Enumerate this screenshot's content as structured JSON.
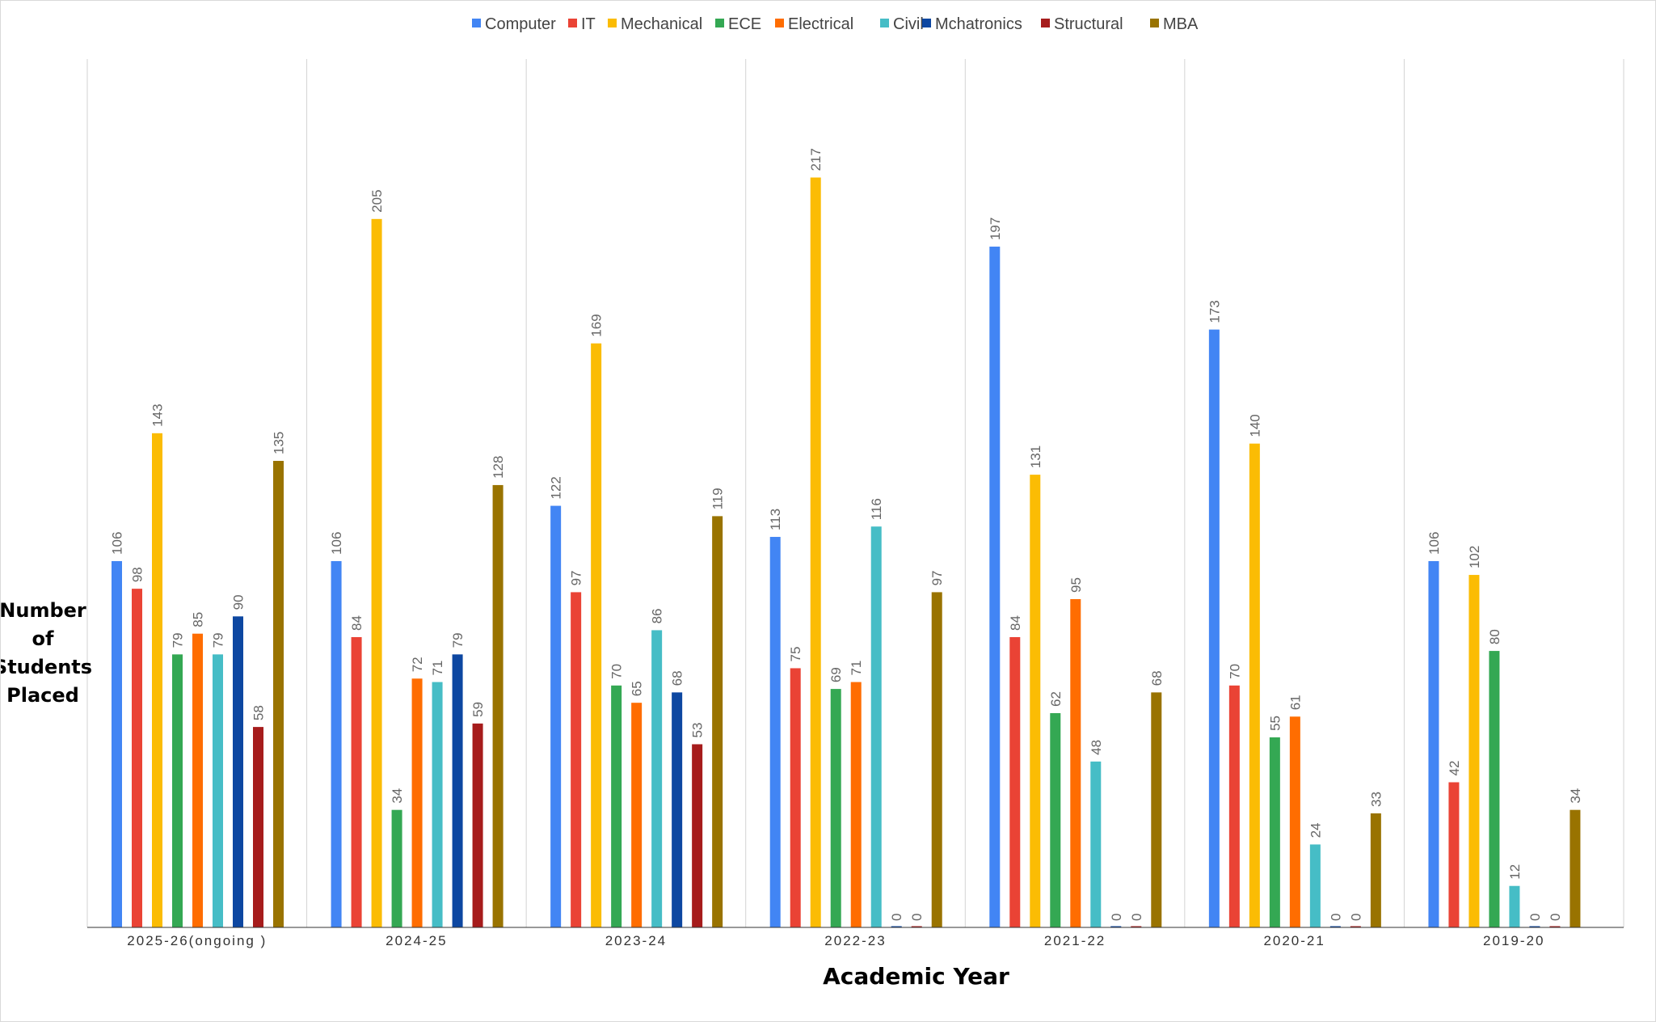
{
  "chart_data": {
    "type": "bar",
    "xlabel": "Academic Year",
    "ylabel": "Number of Students Placed",
    "ylabel_lines": [
      "Number",
      "of",
      "Students",
      "Placed"
    ],
    "ylim": [
      0,
      250
    ],
    "grid": false,
    "legend_position": "top",
    "categories": [
      "2025-26(ongoing )",
      "2024-25",
      "2023-24",
      "2022-23",
      "2021-22",
      "2020-21",
      "2019-20"
    ],
    "series": [
      {
        "name": "Computer",
        "color": "#4285f4",
        "values": [
          106,
          106,
          122,
          113,
          197,
          173,
          106
        ]
      },
      {
        "name": "IT",
        "color": "#ea4335",
        "values": [
          98,
          84,
          97,
          75,
          84,
          70,
          42
        ]
      },
      {
        "name": "Mechanical",
        "color": "#fbbc04",
        "values": [
          143,
          205,
          169,
          217,
          131,
          140,
          102
        ]
      },
      {
        "name": "ECE",
        "color": "#34a853",
        "values": [
          79,
          34,
          70,
          69,
          62,
          55,
          80
        ]
      },
      {
        "name": "Electrical",
        "color": "#ff6d01",
        "values": [
          85,
          72,
          65,
          71,
          95,
          61,
          0
        ]
      },
      {
        "name": "Civil",
        "color": "#46bdc6",
        "values": [
          79,
          71,
          86,
          116,
          48,
          24,
          12
        ]
      },
      {
        "name": "Mchatronics",
        "color": "#0d47a1",
        "values": [
          90,
          79,
          68,
          0,
          0,
          0,
          0
        ]
      },
      {
        "name": "Structural",
        "color": "#a61c1c",
        "values": [
          58,
          59,
          53,
          0,
          0,
          0,
          0
        ]
      },
      {
        "name": "MBA",
        "color": "#997300",
        "values": [
          135,
          128,
          119,
          97,
          68,
          33,
          34
        ]
      }
    ],
    "present": [
      [
        true,
        true,
        true,
        true,
        true,
        true,
        true,
        true,
        true
      ],
      [
        true,
        true,
        true,
        true,
        true,
        true,
        true,
        true,
        true
      ],
      [
        true,
        true,
        true,
        true,
        true,
        true,
        true,
        true,
        true
      ],
      [
        true,
        true,
        true,
        true,
        true,
        true,
        true,
        true,
        true
      ],
      [
        true,
        true,
        true,
        true,
        true,
        true,
        true,
        true,
        true
      ],
      [
        true,
        true,
        true,
        true,
        true,
        true,
        true,
        true,
        true
      ],
      [
        true,
        true,
        true,
        true,
        false,
        true,
        true,
        true,
        true
      ]
    ]
  }
}
